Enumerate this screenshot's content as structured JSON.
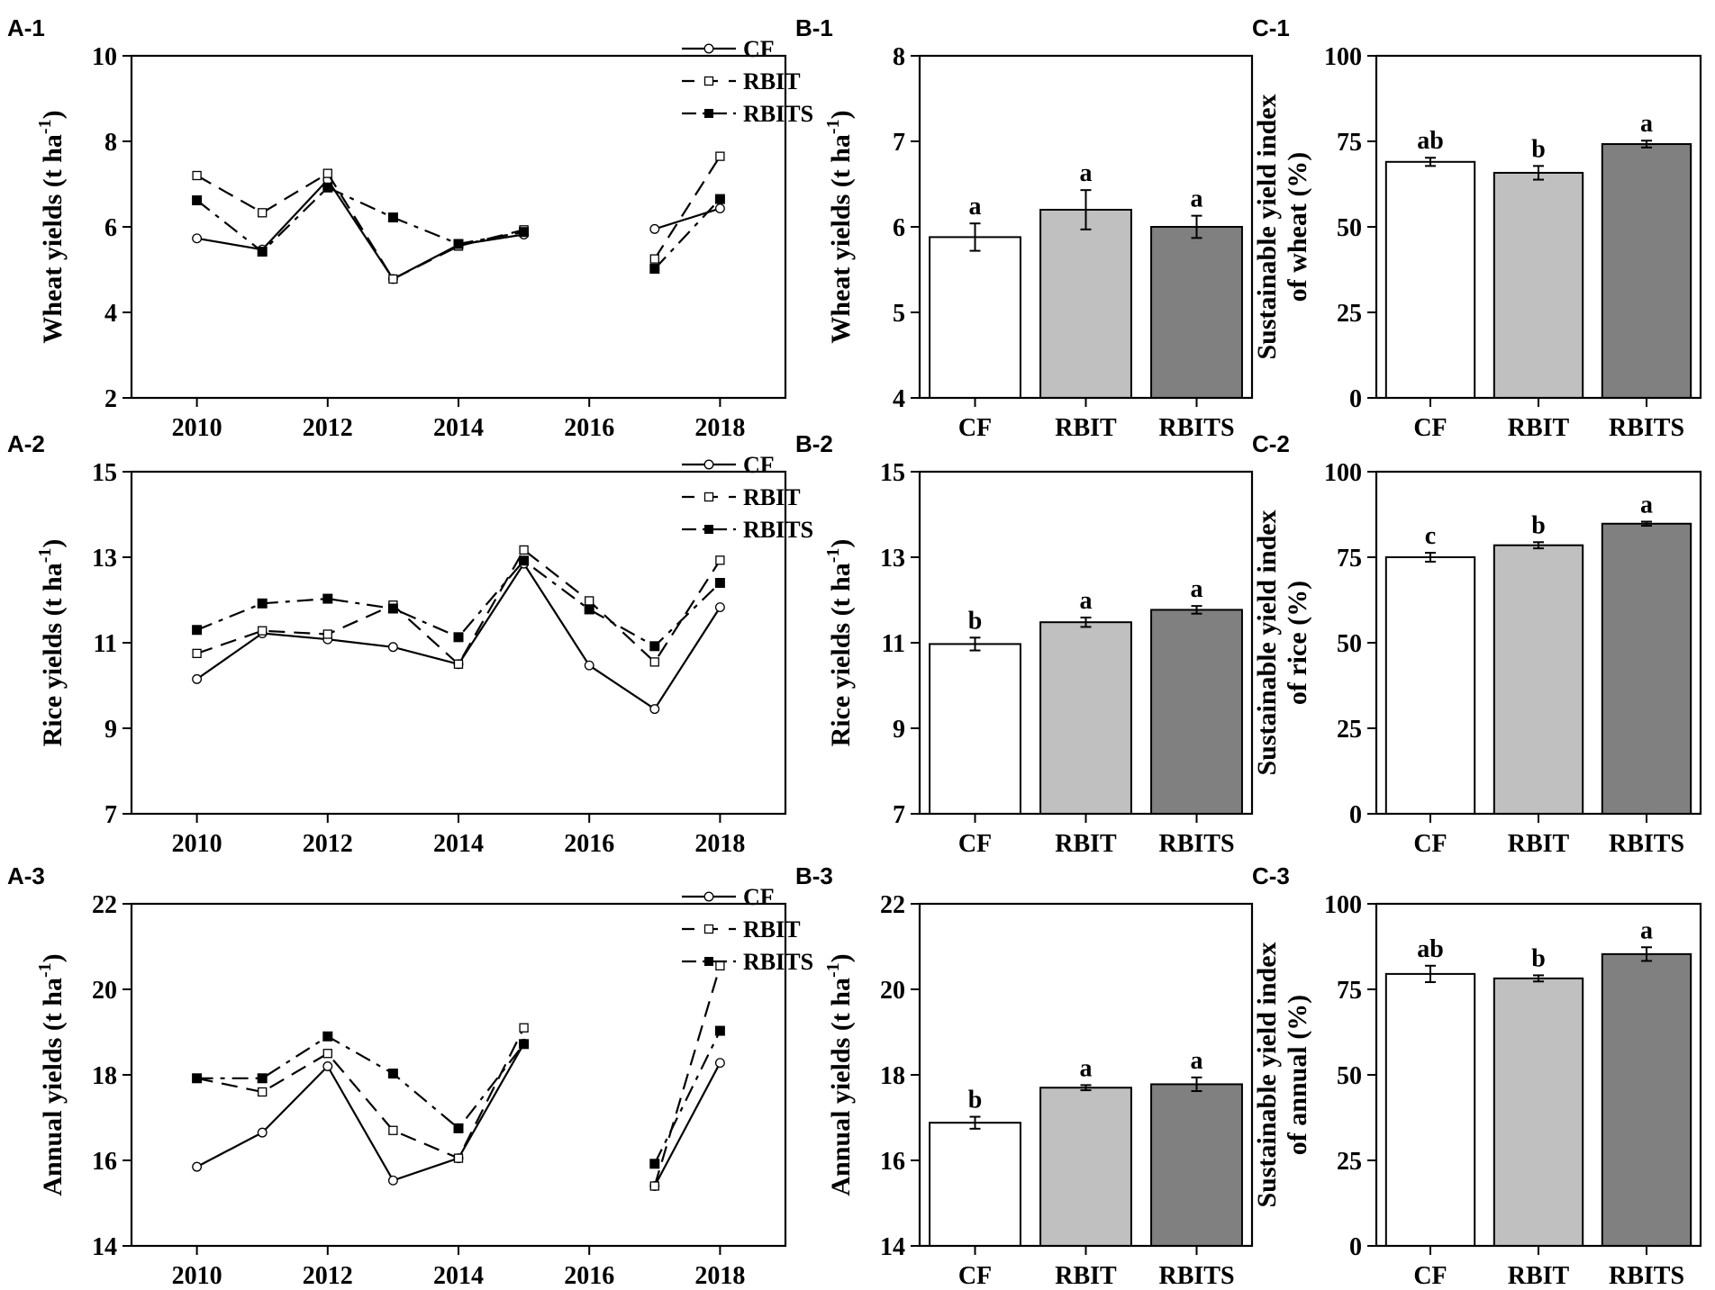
{
  "chart_data": [
    {
      "id": "A-1",
      "panel_label": "A-1",
      "type": "line",
      "ylabel": "Wheat yields (t ha-1)",
      "ylabel_main": "Wheat yields (t ha",
      "ylabel_sup": "-1",
      "ylabel_close": ")",
      "xlim": [
        2009,
        2019
      ],
      "ylim": [
        2,
        10
      ],
      "xticks": [
        2010,
        2012,
        2014,
        2016,
        2018
      ],
      "yticks": [
        2,
        4,
        6,
        8,
        10
      ],
      "legend": "top-right",
      "series": [
        {
          "name": "CF",
          "line": "solid",
          "marker": "open-circle",
          "segments": [
            [
              [
                2010,
                5.73
              ],
              [
                2011,
                5.47
              ],
              [
                2012,
                7.1
              ],
              [
                2013,
                4.78
              ],
              [
                2014,
                5.58
              ],
              [
                2015,
                5.82
              ]
            ],
            [
              [
                2017,
                5.95
              ],
              [
                2018,
                6.43
              ]
            ]
          ]
        },
        {
          "name": "RBIT",
          "line": "dash",
          "marker": "open-square",
          "segments": [
            [
              [
                2010,
                7.2
              ],
              [
                2011,
                6.33
              ],
              [
                2012,
                7.25
              ],
              [
                2013,
                4.78
              ],
              [
                2014,
                5.55
              ],
              [
                2015,
                5.93
              ]
            ],
            [
              [
                2017,
                5.25
              ],
              [
                2018,
                7.65
              ]
            ]
          ]
        },
        {
          "name": "RBITS",
          "line": "dashdot",
          "marker": "filled-square",
          "segments": [
            [
              [
                2010,
                6.62
              ],
              [
                2011,
                5.42
              ],
              [
                2012,
                6.92
              ],
              [
                2013,
                6.22
              ],
              [
                2014,
                5.6
              ],
              [
                2015,
                5.88
              ]
            ],
            [
              [
                2017,
                5.02
              ],
              [
                2018,
                6.65
              ]
            ]
          ]
        }
      ]
    },
    {
      "id": "B-1",
      "panel_label": "B-1",
      "type": "bar",
      "ylabel": "Wheat yields (t ha-1)",
      "ylabel_main": "Wheat yields (t ha",
      "ylabel_sup": "-1",
      "ylabel_close": ")",
      "ylim": [
        4,
        8
      ],
      "yticks": [
        4,
        5,
        6,
        7,
        8
      ],
      "categories": [
        "CF",
        "RBIT",
        "RBITS"
      ],
      "values": [
        5.88,
        6.2,
        6.0
      ],
      "errors": [
        0.16,
        0.23,
        0.13
      ],
      "significance": [
        "a",
        "a",
        "a"
      ],
      "colors": [
        "#ffffff",
        "#c0c0c0",
        "#808080"
      ]
    },
    {
      "id": "C-1",
      "panel_label": "C-1",
      "type": "bar",
      "ylabel": "Sustainable yield index of wheat (%)",
      "ylabel_line1": "Sustainable yield index",
      "ylabel_line2": "of wheat (%)",
      "ylim": [
        0,
        100
      ],
      "yticks": [
        0,
        25,
        50,
        75,
        100
      ],
      "categories": [
        "CF",
        "RBIT",
        "RBITS"
      ],
      "values": [
        69,
        65.8,
        74.2
      ],
      "errors": [
        1.2,
        2.0,
        1.0
      ],
      "significance": [
        "ab",
        "b",
        "a"
      ],
      "colors": [
        "#ffffff",
        "#c0c0c0",
        "#808080"
      ]
    },
    {
      "id": "A-2",
      "panel_label": "A-2",
      "type": "line",
      "ylabel": "Rice yields (t ha-1)",
      "ylabel_main": "Rice yields (t ha",
      "ylabel_sup": "-1",
      "ylabel_close": ")",
      "xlim": [
        2009,
        2019
      ],
      "ylim": [
        7,
        15
      ],
      "xticks": [
        2010,
        2012,
        2014,
        2016,
        2018
      ],
      "yticks": [
        7,
        9,
        11,
        13,
        15
      ],
      "legend": "top-right",
      "series": [
        {
          "name": "CF",
          "line": "solid",
          "marker": "open-circle",
          "segments": [
            [
              [
                2010,
                10.15
              ],
              [
                2011,
                11.22
              ],
              [
                2012,
                11.08
              ],
              [
                2013,
                10.9
              ],
              [
                2014,
                10.5
              ],
              [
                2015,
                12.85
              ],
              [
                2016,
                10.47
              ],
              [
                2017,
                9.45
              ],
              [
                2018,
                11.83
              ]
            ]
          ]
        },
        {
          "name": "RBIT",
          "line": "dash",
          "marker": "open-square",
          "segments": [
            [
              [
                2010,
                10.75
              ],
              [
                2011,
                11.28
              ],
              [
                2012,
                11.2
              ],
              [
                2013,
                11.88
              ],
              [
                2014,
                10.5
              ],
              [
                2015,
                13.17
              ],
              [
                2016,
                11.98
              ],
              [
                2017,
                10.55
              ],
              [
                2018,
                12.93
              ]
            ]
          ]
        },
        {
          "name": "RBITS",
          "line": "dashdot",
          "marker": "filled-square",
          "segments": [
            [
              [
                2010,
                11.3
              ],
              [
                2011,
                11.92
              ],
              [
                2012,
                12.03
              ],
              [
                2013,
                11.8
              ],
              [
                2014,
                11.13
              ],
              [
                2015,
                12.92
              ],
              [
                2016,
                11.78
              ],
              [
                2017,
                10.92
              ],
              [
                2018,
                12.4
              ]
            ]
          ]
        }
      ]
    },
    {
      "id": "B-2",
      "panel_label": "B-2",
      "type": "bar",
      "ylabel": "Rice yields (t ha-1)",
      "ylabel_main": "Rice yields (t ha",
      "ylabel_sup": "-1",
      "ylabel_close": ")",
      "ylim": [
        7,
        15
      ],
      "yticks": [
        7,
        9,
        11,
        13,
        15
      ],
      "categories": [
        "CF",
        "RBIT",
        "RBITS"
      ],
      "values": [
        10.97,
        11.48,
        11.77
      ],
      "errors": [
        0.15,
        0.11,
        0.09
      ],
      "significance": [
        "b",
        "a",
        "a"
      ],
      "colors": [
        "#ffffff",
        "#c0c0c0",
        "#808080"
      ]
    },
    {
      "id": "C-2",
      "panel_label": "C-2",
      "type": "bar",
      "ylabel": "Sustainable yield index of rice (%)",
      "ylabel_line1": "Sustainable yield index",
      "ylabel_line2": "of rice (%)",
      "ylim": [
        0,
        100
      ],
      "yticks": [
        0,
        25,
        50,
        75,
        100
      ],
      "categories": [
        "CF",
        "RBIT",
        "RBITS"
      ],
      "values": [
        75,
        78.5,
        84.8
      ],
      "errors": [
        1.3,
        0.9,
        0.6
      ],
      "significance": [
        "c",
        "b",
        "a"
      ],
      "colors": [
        "#ffffff",
        "#c0c0c0",
        "#808080"
      ]
    },
    {
      "id": "A-3",
      "panel_label": "A-3",
      "type": "line",
      "ylabel": "Annual yields (t ha-1)",
      "ylabel_main": "Annual yields (t ha",
      "ylabel_sup": "-1",
      "ylabel_close": ")",
      "xlim": [
        2009,
        2019
      ],
      "ylim": [
        14,
        22
      ],
      "xticks": [
        2010,
        2012,
        2014,
        2016,
        2018
      ],
      "yticks": [
        14,
        16,
        18,
        20,
        22
      ],
      "legend": "top-right",
      "series": [
        {
          "name": "CF",
          "line": "solid",
          "marker": "open-circle",
          "segments": [
            [
              [
                2010,
                15.85
              ],
              [
                2011,
                16.65
              ],
              [
                2012,
                18.2
              ],
              [
                2013,
                15.53
              ],
              [
                2014,
                16.05
              ],
              [
                2015,
                18.73
              ]
            ],
            [
              [
                2017,
                15.4
              ],
              [
                2018,
                18.28
              ]
            ]
          ]
        },
        {
          "name": "RBIT",
          "line": "dash",
          "marker": "open-square",
          "segments": [
            [
              [
                2010,
                17.92
              ],
              [
                2011,
                17.6
              ],
              [
                2012,
                18.5
              ],
              [
                2013,
                16.7
              ],
              [
                2014,
                16.05
              ],
              [
                2015,
                19.1
              ]
            ],
            [
              [
                2017,
                15.4
              ],
              [
                2018,
                20.55
              ]
            ]
          ]
        },
        {
          "name": "RBITS",
          "line": "dashdot",
          "marker": "filled-square",
          "segments": [
            [
              [
                2010,
                17.92
              ],
              [
                2011,
                17.92
              ],
              [
                2012,
                18.9
              ],
              [
                2013,
                18.03
              ],
              [
                2014,
                16.75
              ],
              [
                2015,
                18.72
              ]
            ],
            [
              [
                2017,
                15.92
              ],
              [
                2018,
                19.03
              ]
            ]
          ]
        }
      ]
    },
    {
      "id": "B-3",
      "panel_label": "B-3",
      "type": "bar",
      "ylabel": "Annual yields (t ha-1)",
      "ylabel_main": "Annual yields (t ha",
      "ylabel_sup": "-1",
      "ylabel_close": ")",
      "ylim": [
        14,
        22
      ],
      "yticks": [
        14,
        16,
        18,
        20,
        22
      ],
      "categories": [
        "CF",
        "RBIT",
        "RBITS"
      ],
      "values": [
        16.88,
        17.7,
        17.78
      ],
      "errors": [
        0.14,
        0.06,
        0.16
      ],
      "significance": [
        "b",
        "a",
        "a"
      ],
      "colors": [
        "#ffffff",
        "#c0c0c0",
        "#808080"
      ]
    },
    {
      "id": "C-3",
      "panel_label": "C-3",
      "type": "bar",
      "ylabel": "Sustainable yield index of annual (%)",
      "ylabel_line1": "Sustainable yield index",
      "ylabel_line2": "of annual  (%)",
      "ylim": [
        0,
        100
      ],
      "yticks": [
        0,
        25,
        50,
        75,
        100
      ],
      "categories": [
        "CF",
        "RBIT",
        "RBITS"
      ],
      "values": [
        79.5,
        78.2,
        85.3
      ],
      "errors": [
        2.4,
        0.9,
        2.0
      ],
      "significance": [
        "ab",
        "b",
        "a"
      ],
      "colors": [
        "#ffffff",
        "#c0c0c0",
        "#808080"
      ]
    }
  ]
}
